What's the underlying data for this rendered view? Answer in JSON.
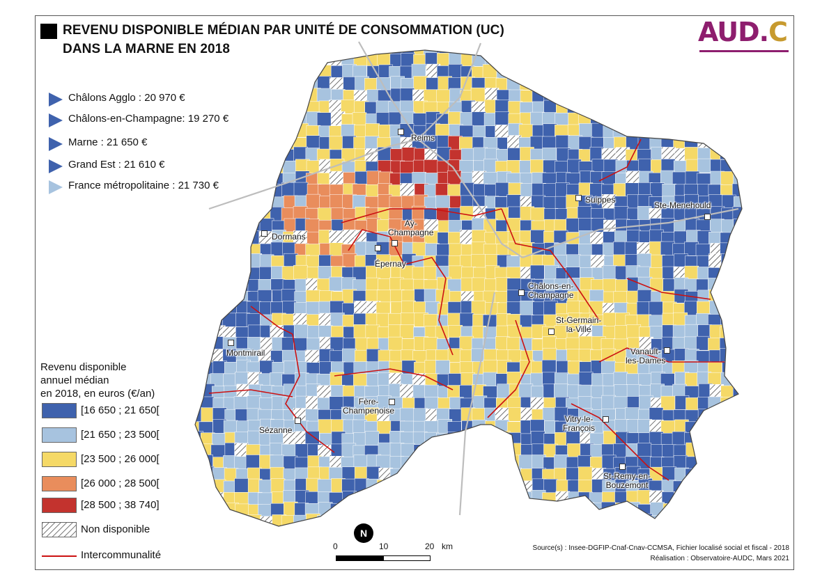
{
  "title": {
    "line1": "REVENU DISPONIBLE MÉDIAN PAR UNITÉ DE CONSOMMATION (UC)",
    "line2": "DANS LA MARNE EN 2018"
  },
  "logo": {
    "main": "AUD.",
    "accent": "C"
  },
  "stats": [
    {
      "label": "Châlons Agglo : 20 970 €",
      "marker": "dark"
    },
    {
      "label": "Châlons-en-Champagne: 19 270 €",
      "marker": "dark"
    },
    {
      "label": "Marne : 21 650 €",
      "marker": "dark"
    },
    {
      "label": "Grand Est : 21 610 €",
      "marker": "dark"
    },
    {
      "label": "France métropolitaine : 21 730 €",
      "marker": "light"
    }
  ],
  "legend": {
    "title_lines": [
      "Revenu disponible",
      "annuel médian",
      "en 2018, en euros (€/an)"
    ],
    "classes": [
      {
        "label": "[16 650 ; 21 650[",
        "color": "#3f62ad"
      },
      {
        "label": "[21 650 ; 23 500[",
        "color": "#a7c3df"
      },
      {
        "label": "[23 500 ; 26 000[",
        "color": "#f5d967"
      },
      {
        "label": "[26 000 ; 28 500[",
        "color": "#e98d5c"
      },
      {
        "label": "[28 500 ; 38 740]",
        "color": "#c3332e"
      }
    ],
    "na_label": "Non disponible",
    "boundary_label": "Intercommunalité",
    "boundary_color": "#cc1111"
  },
  "places": [
    {
      "name": "Reims"
    },
    {
      "name": "Suippes"
    },
    {
      "name": "Ste-Menehould"
    },
    {
      "name": "Dormans"
    },
    {
      "name": "Aÿ-\nChampagne"
    },
    {
      "name": "Épernay"
    },
    {
      "name": "Châlons-en-\nChampagne"
    },
    {
      "name": "St-Germain-\nla-Ville"
    },
    {
      "name": "Montmirail"
    },
    {
      "name": "Vanault-\nles-Dames"
    },
    {
      "name": "Fère-\nChampenoise"
    },
    {
      "name": "Sézanne"
    },
    {
      "name": "Vitry-le-\nFrançois"
    },
    {
      "name": "St-Remy-en-\nBouzemont"
    }
  ],
  "scale": {
    "zero": "0",
    "ten": "10",
    "twenty": "20",
    "unit": "km"
  },
  "north_label": "N",
  "source": {
    "line1": "Source(s) : Insee-DGFIP-Cnaf-Cnav-CCMSA, Fichier localisé social et fiscal -  2018",
    "line2": "Réalisation : Observatoire-AUDC, Mars 2021"
  }
}
